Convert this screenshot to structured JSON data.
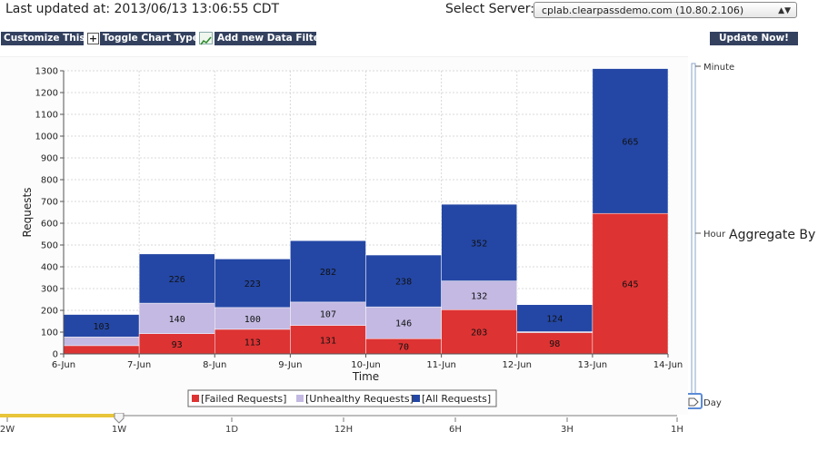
{
  "header": {
    "last_updated": "Last updated at: 2013/06/13 13:06:55 CDT",
    "server_label": "Select Server:",
    "server_value": "cplab.clearpassdemo.com (10.80.2.106)"
  },
  "toolbar": {
    "customize": "Customize This!",
    "toggle": "Toggle Chart Type",
    "add_filter": "Add new Data Filter",
    "update": "Update Now!"
  },
  "chart_data": {
    "type": "bar",
    "stacked": true,
    "xlabel": "Time",
    "ylabel": "Requests",
    "ylim": [
      0,
      1300
    ],
    "yticks": [
      0,
      100,
      200,
      300,
      400,
      500,
      600,
      700,
      800,
      900,
      1000,
      1100,
      1200,
      1300
    ],
    "xtick_labels": [
      "6-Jun",
      "7-Jun",
      "8-Jun",
      "9-Jun",
      "10-Jun",
      "11-Jun",
      "12-Jun",
      "13-Jun",
      "14-Jun"
    ],
    "bars": [
      {
        "start": "6-Jun",
        "end": "7-Jun"
      },
      {
        "start": "7-Jun",
        "end": "8-Jun"
      },
      {
        "start": "8-Jun",
        "end": "9-Jun"
      },
      {
        "start": "9-Jun",
        "end": "10-Jun"
      },
      {
        "start": "10-Jun",
        "end": "11-Jun"
      },
      {
        "start": "11-Jun",
        "end": "12-Jun"
      },
      {
        "start": "12-Jun",
        "end": "13-Jun"
      },
      {
        "start": "13-Jun",
        "end": "14-Jun"
      }
    ],
    "series": [
      {
        "name": "[Failed Requests]",
        "color": "#dd3333",
        "values": [
          38,
          93,
          113,
          131,
          70,
          203,
          98,
          645
        ],
        "labels": [
          "",
          "93",
          "113",
          "131",
          "70",
          "203",
          "98",
          "645"
        ]
      },
      {
        "name": "[Unhealthy Requests]",
        "color": "#c3b9e2",
        "values": [
          40,
          140,
          100,
          107,
          146,
          132,
          4,
          0
        ],
        "labels": [
          "",
          "140",
          "100",
          "107",
          "146",
          "132",
          "",
          ""
        ]
      },
      {
        "name": "[All Requests]",
        "color": "#2447a5",
        "values": [
          103,
          226,
          223,
          282,
          238,
          352,
          124,
          665
        ],
        "labels": [
          "103",
          "226",
          "223",
          "282",
          "238",
          "352",
          "124",
          "665"
        ]
      }
    ],
    "grid": true,
    "legend": "bottom-center"
  },
  "aggregate": {
    "label": "Aggregate By",
    "options": [
      "Minute",
      "Hour",
      "Day"
    ],
    "selected": "Day"
  },
  "timeline": {
    "ticks": [
      "2W",
      "1W",
      "1D",
      "12H",
      "6H",
      "3H",
      "1H"
    ],
    "selected": "1W"
  },
  "colors": {
    "failed": "#dd3333",
    "unhealthy": "#c3b9e2",
    "all": "#2447a5",
    "toolbar_button": "#33415f",
    "timeline_fill": "#e8c53a"
  }
}
